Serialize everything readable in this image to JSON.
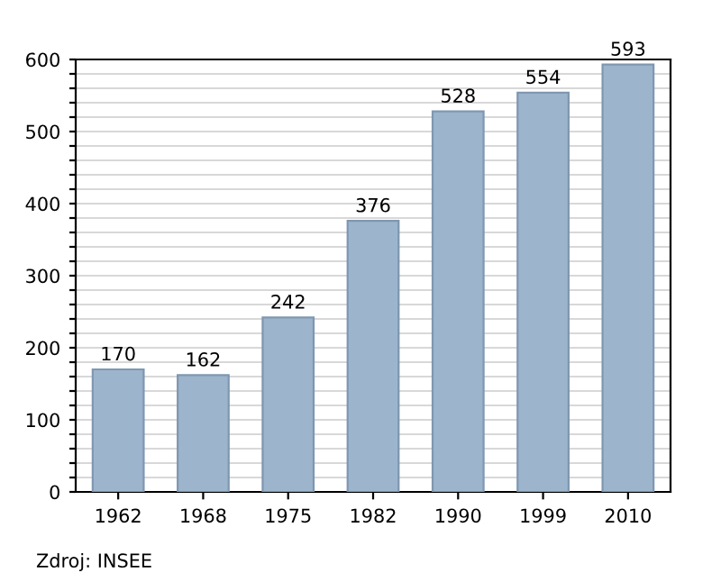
{
  "chart_data": {
    "type": "bar",
    "categories": [
      "1962",
      "1968",
      "1975",
      "1982",
      "1990",
      "1999",
      "2010"
    ],
    "values": [
      170,
      162,
      242,
      376,
      528,
      554,
      593
    ],
    "color": "#9db4cd",
    "data_labels": true,
    "ylim": [
      0,
      600
    ],
    "yticks": [
      0,
      {
        "value": 20,
        "label": null
      },
      {
        "value": 40,
        "label": null
      },
      {
        "value": 60,
        "label": null
      },
      {
        "value": 80,
        "label": null
      },
      100,
      {
        "value": 120,
        "label": null
      },
      {
        "value": 140,
        "label": null
      },
      {
        "value": 160,
        "label": null
      },
      {
        "value": 180,
        "label": null
      },
      200,
      {
        "value": 220,
        "label": null
      },
      {
        "value": 240,
        "label": null
      },
      {
        "value": 260,
        "label": null
      },
      {
        "value": 280,
        "label": null
      },
      300,
      {
        "value": 320,
        "label": null
      },
      {
        "value": 340,
        "label": null
      },
      {
        "value": 360,
        "label": null
      },
      {
        "value": 380,
        "label": null
      },
      400,
      {
        "value": 420,
        "label": null
      },
      {
        "value": 440,
        "label": null
      },
      {
        "value": 460,
        "label": null
      },
      {
        "value": 480,
        "label": null
      },
      500,
      {
        "value": 520,
        "label": null
      },
      {
        "value": 540,
        "label": null
      },
      {
        "value": 560,
        "label": null
      },
      {
        "value": 580,
        "label": null
      },
      600
    ],
    "grid": "y",
    "annotations": [
      "Zdroj: INSEE"
    ]
  }
}
